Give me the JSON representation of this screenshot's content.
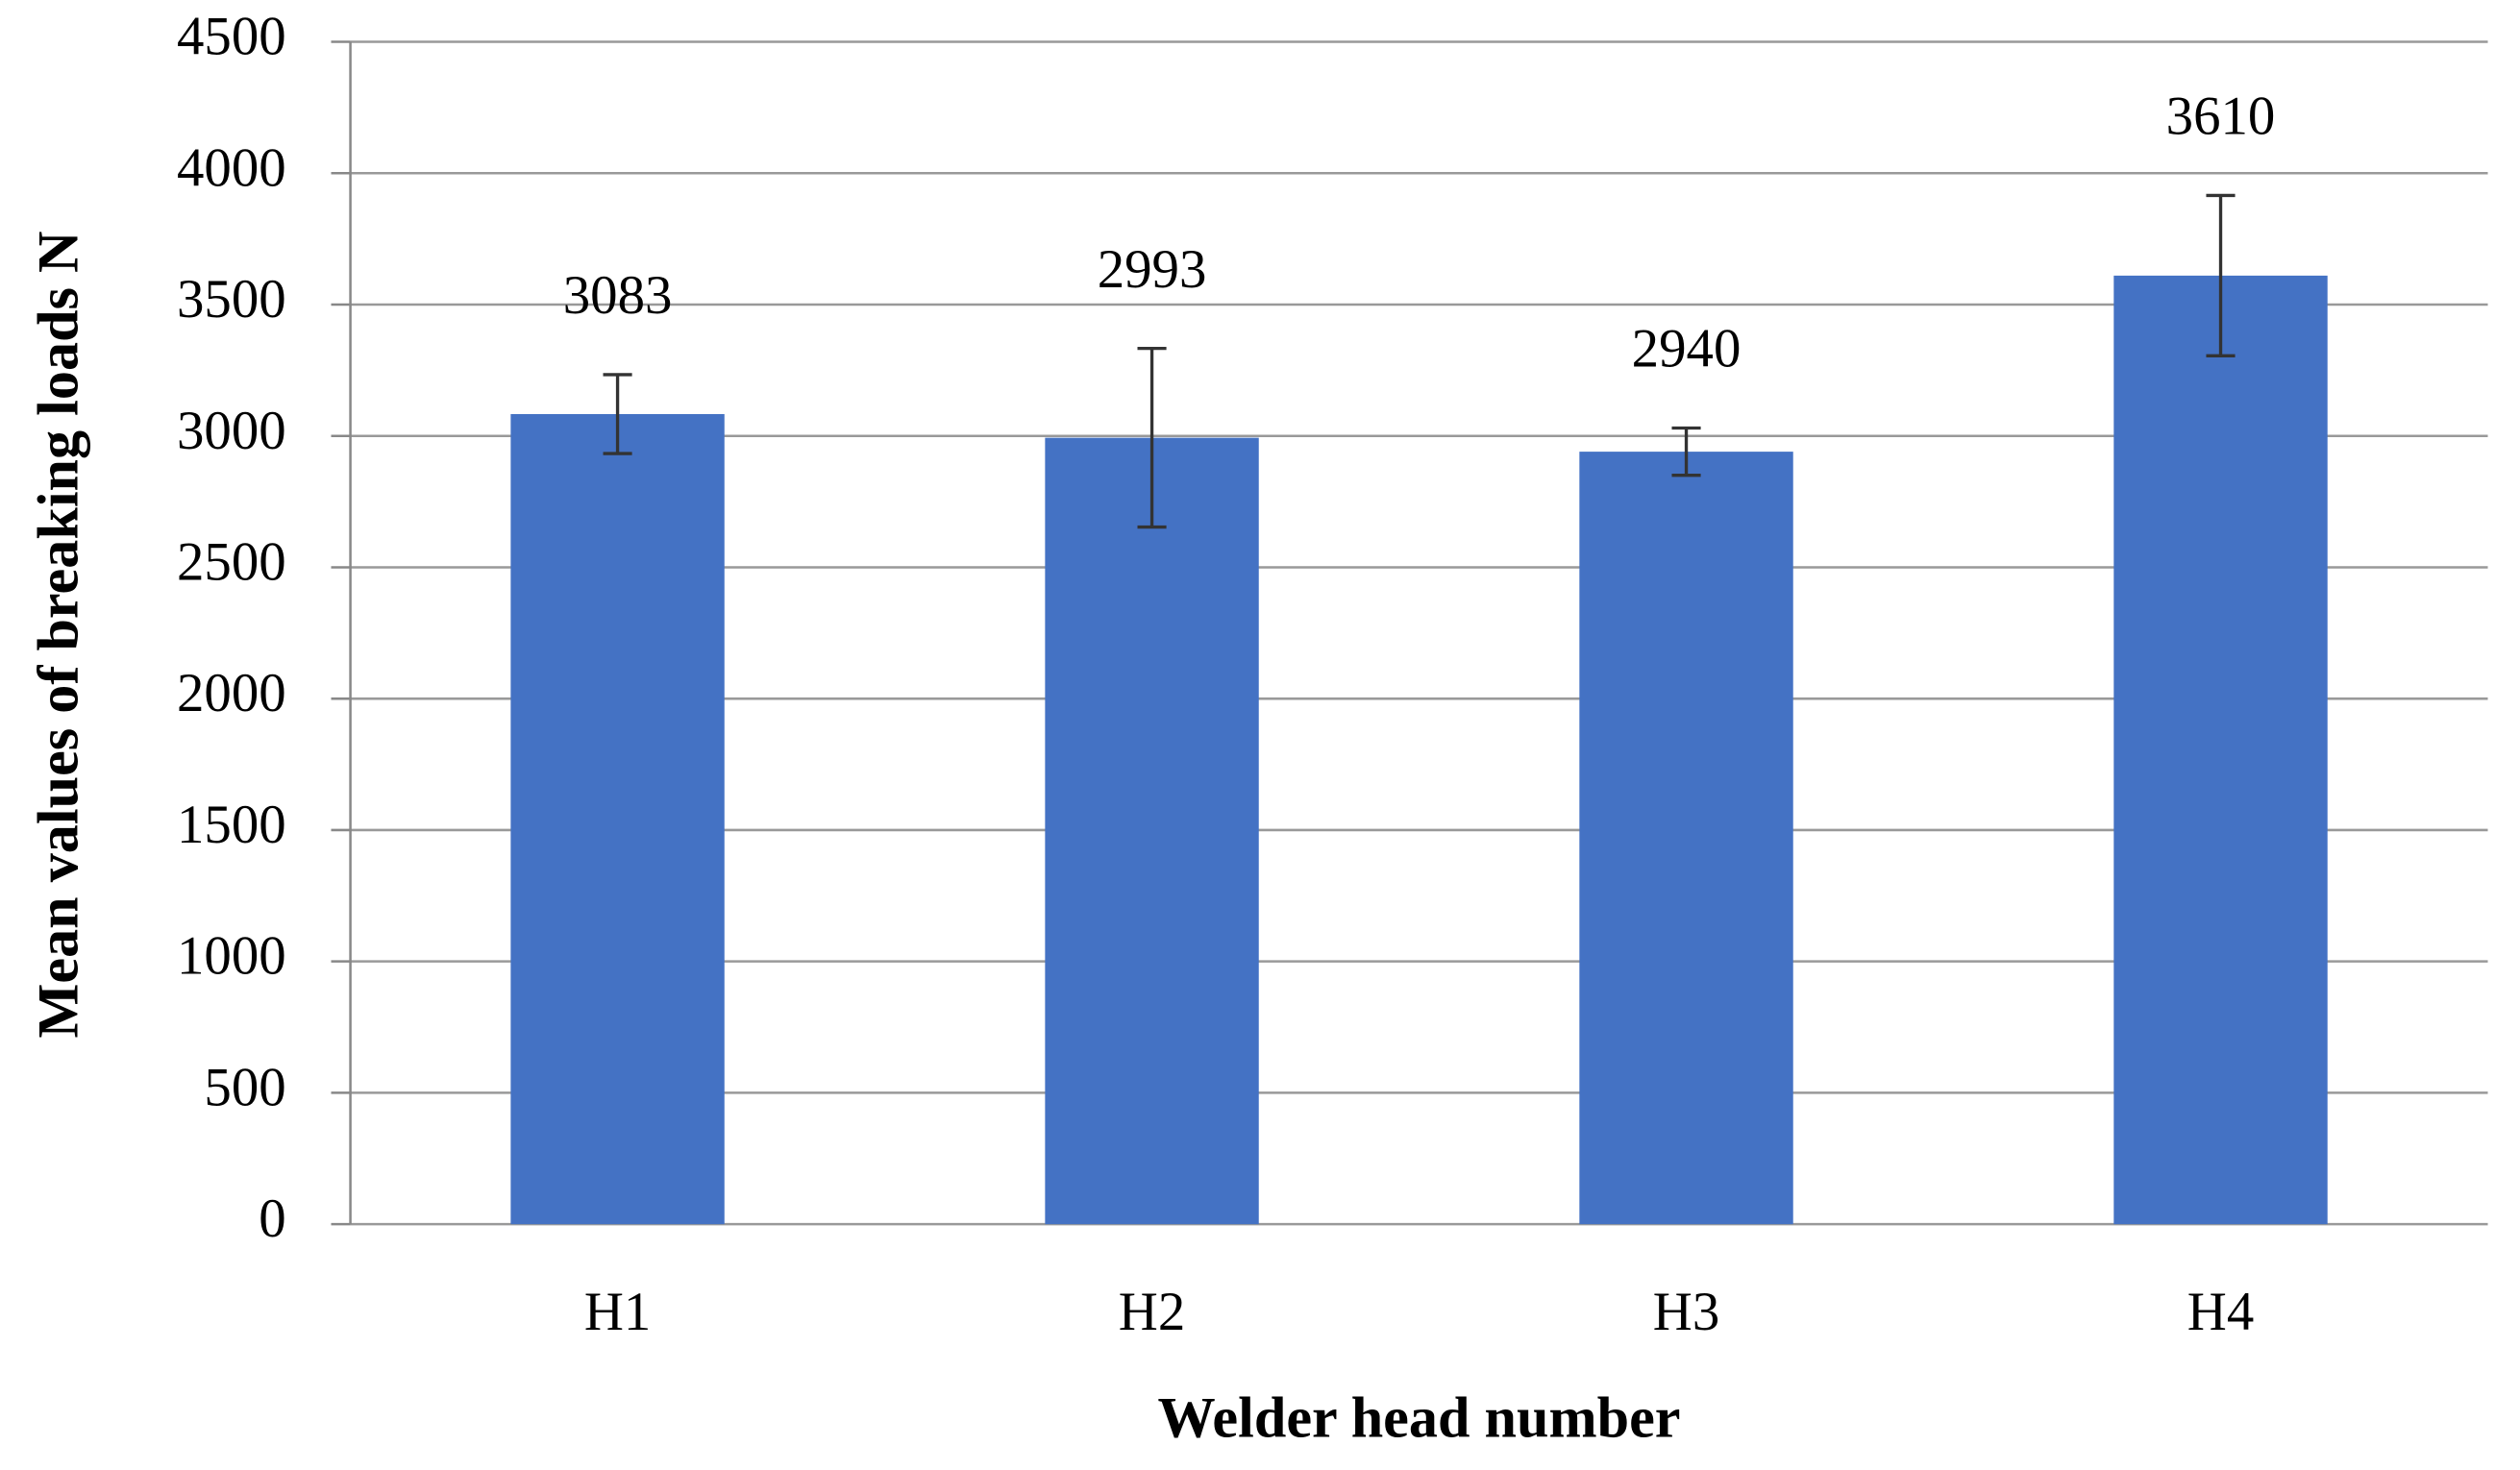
{
  "chart_data": {
    "type": "bar",
    "x_label": "Welder head number",
    "y_label": "Mean values of breaking loads N",
    "categories": [
      "H1",
      "H2",
      "H3",
      "H4"
    ],
    "values": [
      3083,
      2993,
      2940,
      3610
    ],
    "errors": [
      150,
      340,
      90,
      305
    ],
    "color": "#4472c4",
    "ylim": [
      0,
      4500
    ],
    "yticks": [
      0,
      500,
      1000,
      1500,
      2000,
      2500,
      3000,
      3500,
      4000,
      4500
    ],
    "grid": true
  }
}
